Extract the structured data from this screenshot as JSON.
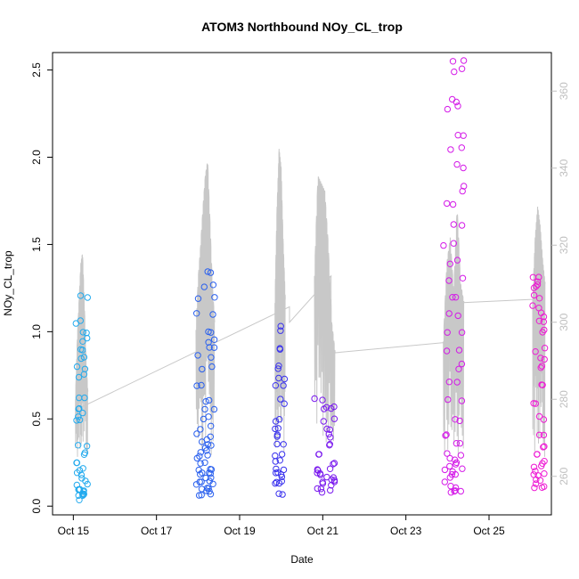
{
  "chart_data": {
    "type": "scatter",
    "title": "ATOM3 Northbound NOy_CL_trop",
    "xlabel": "Date",
    "ylabel": "NOy_CL_trop",
    "x_ticks": [
      "Oct 15",
      "Oct 17",
      "Oct 19",
      "Oct 21",
      "Oct 23",
      "Oct 25"
    ],
    "y_ticks": [
      "0.0",
      "0.5",
      "1.0",
      "1.5",
      "2.0",
      "2.5"
    ],
    "y2_ticks": [
      "260",
      "280",
      "300",
      "320",
      "340",
      "360"
    ],
    "xlim": [
      "2017-10-14",
      "2017-10-26"
    ],
    "ylim": [
      -0.05,
      2.6
    ],
    "y2lim": [
      250,
      370
    ],
    "grid": false,
    "flights": [
      {
        "date": "2017-10-14",
        "color": "#22aaee",
        "t0": 0.55,
        "t1": 0.85,
        "obs": [
          0.05,
          0.06,
          0.07,
          0.08,
          0.09,
          0.1,
          0.12,
          0.15,
          0.18,
          0.22,
          0.26,
          0.3,
          0.35,
          0.48,
          0.52,
          0.55,
          0.62,
          0.75,
          0.8,
          0.85,
          0.9,
          0.95,
          1.0,
          1.05,
          1.21
        ],
        "theta": [
          280,
          295,
          305,
          315,
          318,
          305,
          290,
          282
        ]
      },
      {
        "date": "2017-10-17",
        "color": "#2a60ee",
        "t0": 0.45,
        "t1": 0.9,
        "obs": [
          0.05,
          0.07,
          0.09,
          0.1,
          0.12,
          0.13,
          0.15,
          0.17,
          0.18,
          0.2,
          0.22,
          0.25,
          0.28,
          0.3,
          0.33,
          0.35,
          0.38,
          0.4,
          0.45,
          0.5,
          0.55,
          0.6,
          0.7,
          0.8,
          0.85,
          0.9,
          0.95,
          1.0,
          1.1,
          1.2,
          1.27,
          1.33
        ],
        "theta": [
          298,
          312,
          320,
          330,
          338,
          342,
          326,
          310,
          300
        ]
      },
      {
        "date": "2017-10-19",
        "color": "#3a32ee",
        "t0": 0.35,
        "t1": 0.6,
        "obs": [
          0.08,
          0.12,
          0.15,
          0.18,
          0.2,
          0.22,
          0.25,
          0.3,
          0.35,
          0.4,
          0.45,
          0.5,
          0.6,
          0.7,
          0.72,
          0.8,
          0.9,
          1.02
        ],
        "theta": [
          305,
          330,
          345,
          340,
          320,
          306
        ]
      },
      {
        "date": "2017-10-20",
        "color": "#7a1aee",
        "t0": 0.3,
        "t1": 0.8,
        "obs": [
          0.08,
          0.1,
          0.12,
          0.14,
          0.15,
          0.16,
          0.18,
          0.2,
          0.22,
          0.25,
          0.3,
          0.35,
          0.4,
          0.45,
          0.5,
          0.55,
          0.58,
          0.62
        ],
        "theta": [
          312,
          338,
          336,
          334,
          320,
          300,
          292
        ]
      },
      {
        "date": "2017-10-23",
        "color": "#d41ae8",
        "t0": 0.4,
        "t1": 0.9,
        "obs": [
          0.08,
          0.1,
          0.12,
          0.15,
          0.17,
          0.2,
          0.22,
          0.25,
          0.28,
          0.3,
          0.35,
          0.4,
          0.5,
          0.6,
          0.7,
          0.8,
          0.9,
          1.0,
          1.1,
          1.2,
          1.3,
          1.4,
          1.5,
          1.6,
          1.73,
          1.82,
          1.95,
          2.05,
          2.12,
          2.28,
          2.32,
          2.5,
          2.55
        ],
        "theta": [
          295,
          315,
          322,
          308,
          330,
          310,
          305
        ]
      },
      {
        "date": "2017-10-25",
        "color": "#ee1ad4",
        "t0": 0.55,
        "t1": 0.85,
        "obs": [
          0.1,
          0.12,
          0.15,
          0.18,
          0.2,
          0.22,
          0.25,
          0.3,
          0.35,
          0.4,
          0.5,
          0.6,
          0.7,
          0.8,
          0.85,
          0.9,
          1.0,
          1.05,
          1.1,
          1.15,
          1.2,
          1.25,
          1.28,
          1.32
        ],
        "theta": [
          306,
          322,
          330,
          325,
          316,
          310
        ]
      }
    ],
    "theta_links": [
      [
        "2017-10-14",
        278
      ],
      [
        "2017-10-19",
        304
      ],
      [
        "2017-10-19",
        300
      ],
      [
        "2017-10-20",
        312
      ],
      [
        "2017-10-20",
        292
      ],
      [
        "2017-10-23",
        295
      ],
      [
        "2017-10-23",
        305
      ],
      [
        "2017-10-25",
        306
      ]
    ]
  }
}
